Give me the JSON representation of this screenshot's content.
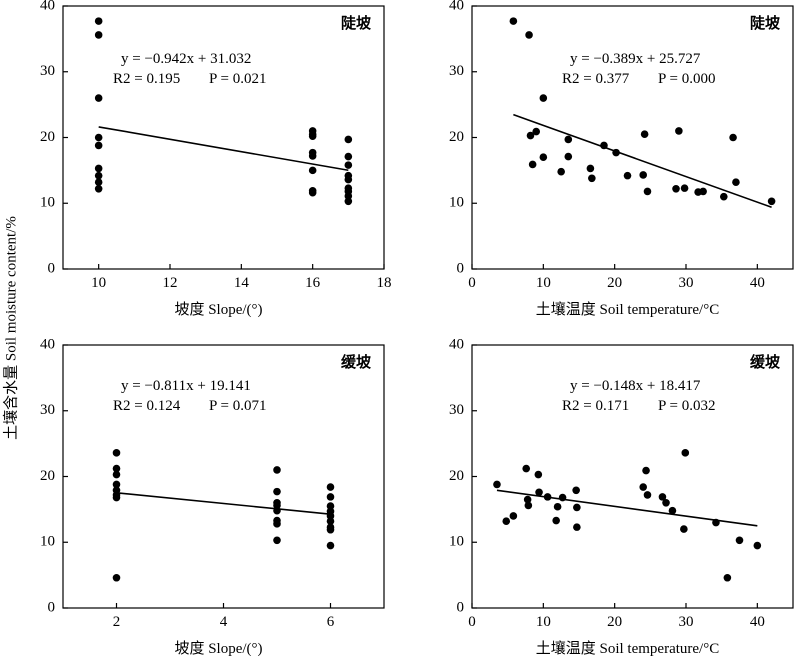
{
  "figure": {
    "ylabel": "土壤含水量 Soil moisture content/%"
  },
  "chart_data": [
    {
      "type": "scatter",
      "title": "陡坡",
      "xlabel": "坡度 Slope/(°)",
      "xlim": [
        9,
        18
      ],
      "ylim": [
        0,
        40
      ],
      "xticks": [
        10,
        12,
        14,
        16,
        18
      ],
      "yticks": [
        0,
        10,
        20,
        30,
        40
      ],
      "equation": "y = −0.942x + 31.032",
      "r2": "R2 = 0.195",
      "p": "P = 0.021",
      "fit": {
        "slope": -0.942,
        "intercept": 31.032,
        "x_from": 10,
        "x_to": 17
      },
      "points": [
        [
          10,
          37.7
        ],
        [
          10,
          35.6
        ],
        [
          10,
          26.0
        ],
        [
          10,
          20.0
        ],
        [
          10,
          18.8
        ],
        [
          10,
          15.3
        ],
        [
          10,
          14.2
        ],
        [
          10,
          13.2
        ],
        [
          10,
          12.2
        ],
        [
          16,
          21.0
        ],
        [
          16,
          20.5
        ],
        [
          16,
          20.2
        ],
        [
          16,
          17.7
        ],
        [
          16,
          17.2
        ],
        [
          16,
          15.0
        ],
        [
          16,
          11.9
        ],
        [
          16,
          11.6
        ],
        [
          17,
          19.7
        ],
        [
          17,
          17.1
        ],
        [
          17,
          15.8
        ],
        [
          17,
          14.2
        ],
        [
          17,
          13.6
        ],
        [
          17,
          12.3
        ],
        [
          17,
          11.8
        ],
        [
          17,
          11.1
        ],
        [
          17,
          10.3
        ]
      ]
    },
    {
      "type": "scatter",
      "title": "陡坡",
      "xlabel": "土壤温度 Soil temperature/°C",
      "xlim": [
        0,
        45
      ],
      "ylim": [
        0,
        40
      ],
      "xticks": [
        0,
        10,
        20,
        30,
        40
      ],
      "yticks": [
        0,
        10,
        20,
        30,
        40
      ],
      "equation": "y = −0.389x + 25.727",
      "r2": "R2 = 0.377",
      "p": "P = 0.000",
      "fit": {
        "slope": -0.389,
        "intercept": 25.727,
        "x_from": 5.8,
        "x_to": 42
      },
      "points": [
        [
          5.8,
          37.7
        ],
        [
          8.0,
          35.6
        ],
        [
          10.0,
          26.0
        ],
        [
          8.2,
          20.3
        ],
        [
          9.0,
          20.9
        ],
        [
          8.5,
          15.9
        ],
        [
          10.0,
          17.0
        ],
        [
          12.5,
          14.8
        ],
        [
          13.5,
          19.7
        ],
        [
          13.5,
          17.1
        ],
        [
          16.6,
          15.3
        ],
        [
          16.8,
          13.8
        ],
        [
          18.5,
          18.8
        ],
        [
          20.2,
          17.7
        ],
        [
          21.8,
          14.2
        ],
        [
          24.2,
          20.5
        ],
        [
          24.0,
          14.3
        ],
        [
          24.6,
          11.8
        ],
        [
          28.6,
          12.2
        ],
        [
          29.0,
          21.0
        ],
        [
          29.8,
          12.3
        ],
        [
          31.7,
          11.7
        ],
        [
          32.4,
          11.8
        ],
        [
          35.3,
          11.0
        ],
        [
          36.6,
          20.0
        ],
        [
          37.0,
          13.2
        ],
        [
          42.0,
          10.3
        ]
      ]
    },
    {
      "type": "scatter",
      "title": "缓坡",
      "xlabel": "坡度 Slope/(°)",
      "xlim": [
        1,
        7
      ],
      "ylim": [
        0,
        40
      ],
      "xticks": [
        2,
        4,
        6
      ],
      "yticks": [
        0,
        10,
        20,
        30,
        40
      ],
      "equation": "y = −0.811x + 19.141",
      "r2": "R2 = 0.124",
      "p": "P = 0.071",
      "fit": {
        "slope": -0.811,
        "intercept": 19.141,
        "x_from": 2,
        "x_to": 6
      },
      "points": [
        [
          2,
          23.6
        ],
        [
          2,
          21.2
        ],
        [
          2,
          20.3
        ],
        [
          2,
          18.8
        ],
        [
          2,
          17.9
        ],
        [
          2,
          17.2
        ],
        [
          2,
          16.8
        ],
        [
          2,
          4.6
        ],
        [
          5,
          21.0
        ],
        [
          5,
          17.7
        ],
        [
          5,
          16.0
        ],
        [
          5,
          15.6
        ],
        [
          5,
          14.8
        ],
        [
          5,
          13.3
        ],
        [
          5,
          12.8
        ],
        [
          5,
          10.3
        ],
        [
          6,
          18.4
        ],
        [
          6,
          16.9
        ],
        [
          6,
          15.5
        ],
        [
          6,
          14.7
        ],
        [
          6,
          14.0
        ],
        [
          6,
          13.2
        ],
        [
          6,
          12.3
        ],
        [
          6,
          11.9
        ],
        [
          6,
          9.5
        ]
      ]
    },
    {
      "type": "scatter",
      "title": "缓坡",
      "xlabel": "土壤温度 Soil temperature/°C",
      "xlim": [
        0,
        45
      ],
      "ylim": [
        0,
        40
      ],
      "xticks": [
        0,
        10,
        20,
        30,
        40
      ],
      "yticks": [
        0,
        10,
        20,
        30,
        40
      ],
      "equation": "y = −0.148x + 18.417",
      "r2": "R2 = 0.171",
      "p": "P = 0.032",
      "fit": {
        "slope": -0.148,
        "intercept": 18.417,
        "x_from": 3.5,
        "x_to": 40
      },
      "points": [
        [
          3.5,
          18.8
        ],
        [
          4.8,
          13.2
        ],
        [
          5.8,
          14.0
        ],
        [
          7.6,
          21.2
        ],
        [
          7.8,
          16.5
        ],
        [
          7.9,
          15.6
        ],
        [
          9.3,
          20.3
        ],
        [
          9.4,
          17.6
        ],
        [
          10.6,
          16.9
        ],
        [
          11.8,
          13.3
        ],
        [
          12.0,
          15.4
        ],
        [
          12.7,
          16.8
        ],
        [
          14.6,
          17.9
        ],
        [
          14.7,
          15.3
        ],
        [
          14.7,
          12.3
        ],
        [
          24.0,
          18.4
        ],
        [
          24.4,
          20.9
        ],
        [
          24.6,
          17.2
        ],
        [
          26.7,
          16.9
        ],
        [
          27.2,
          16.0
        ],
        [
          28.1,
          14.8
        ],
        [
          29.7,
          12.0
        ],
        [
          29.9,
          23.6
        ],
        [
          34.2,
          13.0
        ],
        [
          35.8,
          4.6
        ],
        [
          37.5,
          10.3
        ],
        [
          40.0,
          9.5
        ]
      ]
    }
  ]
}
